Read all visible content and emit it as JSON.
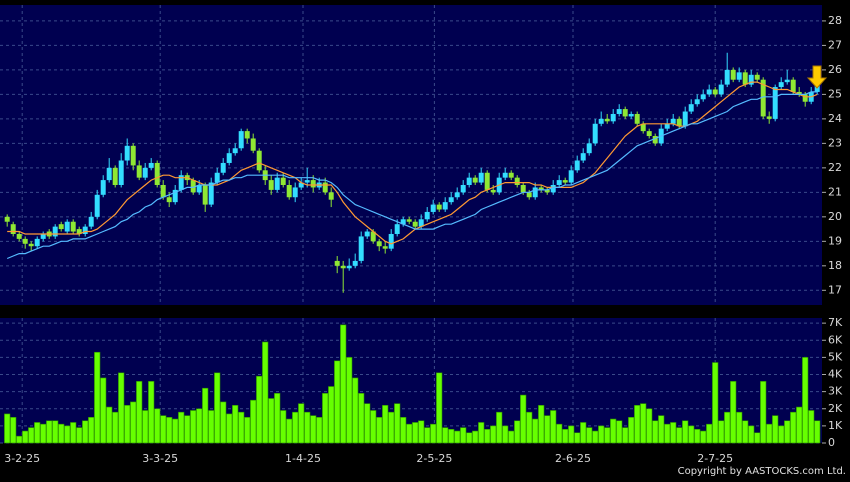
{
  "copyright": "Copyright by AASTOCKS.com Ltd.",
  "chart_data": [
    {
      "type": "candlestick",
      "up_color": "#33ddff",
      "down_color": "#8fe833",
      "open": [
        20.0,
        19.7,
        19.3,
        19.1,
        18.9,
        18.8,
        19.1,
        19.4,
        19.2,
        19.7,
        19.4,
        19.8,
        19.5,
        19.3,
        19.6,
        20.0,
        20.9,
        21.5,
        22.0,
        21.3,
        22.3,
        22.9,
        22.1,
        21.6,
        22.0,
        22.2,
        21.3,
        20.8,
        20.6,
        21.1,
        21.7,
        21.5,
        21.0,
        21.3,
        20.5,
        21.4,
        21.8,
        22.2,
        22.6,
        22.8,
        23.5,
        23.2,
        22.7,
        21.9,
        21.5,
        21.1,
        21.6,
        21.3,
        20.8,
        21.2,
        21.4,
        21.5,
        21.2,
        21.4,
        21.0,
        18.2,
        18.0,
        17.9,
        18.0,
        18.2,
        19.2,
        19.4,
        19.0,
        18.8,
        18.7,
        19.3,
        19.7,
        19.9,
        19.8,
        19.6,
        19.9,
        20.2,
        20.5,
        20.3,
        20.6,
        20.8,
        21.0,
        21.3,
        21.6,
        21.4,
        21.8,
        21.1,
        21.0,
        21.6,
        21.8,
        21.6,
        21.3,
        21.0,
        20.8,
        21.2,
        21.1,
        21.0,
        21.3,
        21.5,
        21.4,
        21.9,
        22.3,
        22.6,
        23.0,
        23.8,
        24.0,
        23.9,
        24.2,
        24.4,
        24.1,
        24.2,
        23.8,
        23.5,
        23.3,
        23.0,
        23.6,
        23.8,
        24.0,
        23.7,
        24.3,
        24.6,
        24.8,
        25.0,
        25.2,
        25.0,
        25.4,
        26.0,
        25.6,
        25.9,
        25.4,
        25.8,
        25.6,
        24.1,
        24.0,
        25.3,
        25.5,
        25.6,
        25.1,
        25.0,
        24.7,
        25.1
      ],
      "high": [
        20.1,
        19.8,
        19.4,
        19.2,
        19.0,
        19.2,
        19.4,
        19.5,
        19.7,
        19.8,
        19.9,
        19.9,
        19.6,
        19.7,
        20.2,
        21.1,
        21.7,
        22.4,
        22.1,
        22.6,
        23.2,
        23.0,
        22.3,
        22.2,
        22.4,
        22.3,
        21.5,
        21.0,
        21.3,
        21.9,
        21.8,
        21.6,
        21.5,
        21.4,
        21.6,
        22.0,
        22.4,
        22.8,
        23.0,
        23.6,
        23.6,
        23.4,
        22.8,
        22.1,
        21.7,
        21.8,
        21.8,
        21.5,
        21.4,
        21.6,
        22.0,
        21.7,
        21.6,
        21.6,
        21.2,
        18.4,
        18.2,
        18.3,
        18.5,
        19.4,
        19.5,
        19.5,
        19.1,
        19.0,
        19.5,
        19.9,
        20.0,
        20.0,
        19.9,
        20.1,
        20.4,
        20.7,
        20.6,
        20.8,
        21.0,
        21.2,
        21.5,
        21.8,
        21.7,
        22.0,
        21.9,
        21.3,
        21.8,
        22.0,
        21.9,
        21.7,
        21.4,
        21.1,
        21.4,
        21.3,
        21.2,
        21.5,
        21.7,
        21.6,
        22.1,
        22.5,
        22.8,
        23.2,
        24.0,
        24.3,
        24.2,
        24.4,
        24.6,
        24.5,
        24.3,
        24.3,
        23.9,
        23.6,
        23.4,
        23.8,
        24.0,
        24.2,
        24.1,
        24.5,
        24.8,
        25.0,
        25.2,
        25.4,
        25.3,
        25.6,
        26.7,
        26.1,
        26.1,
        26.0,
        26.0,
        25.9,
        25.7,
        24.3,
        25.4,
        25.7,
        26.0,
        25.7,
        25.3,
        25.1,
        25.3,
        25.6
      ],
      "low": [
        19.6,
        19.2,
        19.0,
        18.7,
        18.6,
        18.7,
        19.0,
        19.1,
        19.1,
        19.4,
        19.3,
        19.3,
        19.2,
        19.2,
        19.5,
        19.9,
        20.8,
        21.4,
        21.2,
        21.2,
        22.1,
        21.9,
        21.5,
        21.5,
        21.9,
        21.2,
        20.7,
        20.4,
        20.5,
        21.0,
        21.3,
        20.9,
        20.9,
        20.2,
        20.4,
        21.3,
        21.7,
        22.1,
        22.5,
        22.7,
        23.0,
        22.6,
        21.8,
        21.3,
        20.9,
        21.0,
        21.2,
        20.7,
        20.6,
        21.1,
        21.2,
        21.0,
        21.1,
        20.9,
        20.4,
        17.7,
        16.9,
        17.8,
        17.9,
        18.1,
        19.1,
        18.9,
        18.6,
        18.5,
        18.6,
        19.2,
        19.6,
        19.7,
        19.5,
        19.5,
        19.8,
        20.1,
        20.2,
        20.2,
        20.5,
        20.7,
        20.9,
        21.2,
        21.3,
        21.3,
        21.0,
        20.9,
        20.9,
        21.5,
        21.5,
        21.2,
        20.9,
        20.7,
        20.7,
        21.0,
        20.9,
        20.9,
        21.2,
        21.3,
        21.3,
        21.8,
        22.2,
        22.5,
        22.9,
        23.7,
        23.8,
        23.8,
        24.1,
        24.0,
        24.0,
        23.7,
        23.4,
        23.2,
        22.9,
        22.9,
        23.5,
        23.7,
        23.6,
        23.6,
        24.2,
        24.5,
        24.7,
        24.9,
        24.9,
        24.9,
        25.3,
        25.5,
        25.5,
        25.3,
        25.3,
        25.5,
        24.0,
        23.8,
        23.9,
        25.2,
        25.4,
        25.0,
        24.9,
        24.5,
        24.6,
        25.0
      ],
      "close": [
        19.8,
        19.3,
        19.1,
        18.9,
        18.8,
        19.1,
        19.3,
        19.2,
        19.6,
        19.5,
        19.8,
        19.4,
        19.3,
        19.6,
        20.0,
        20.9,
        21.5,
        22.0,
        21.3,
        22.3,
        22.9,
        22.1,
        21.6,
        22.0,
        22.2,
        21.3,
        20.8,
        20.6,
        21.1,
        21.7,
        21.5,
        21.0,
        21.3,
        20.5,
        21.4,
        21.8,
        22.2,
        22.6,
        22.8,
        23.5,
        23.2,
        22.7,
        21.9,
        21.5,
        21.1,
        21.6,
        21.3,
        20.8,
        21.2,
        21.4,
        21.5,
        21.2,
        21.4,
        21.0,
        20.7,
        18.0,
        17.9,
        18.0,
        18.2,
        19.2,
        19.4,
        19.0,
        18.8,
        18.7,
        19.3,
        19.7,
        19.9,
        19.8,
        19.6,
        19.9,
        20.2,
        20.5,
        20.3,
        20.6,
        20.8,
        21.0,
        21.3,
        21.6,
        21.4,
        21.8,
        21.1,
        21.0,
        21.6,
        21.8,
        21.6,
        21.3,
        21.0,
        20.8,
        21.2,
        21.1,
        21.0,
        21.3,
        21.5,
        21.4,
        21.9,
        22.3,
        22.6,
        23.0,
        23.8,
        24.0,
        23.9,
        24.2,
        24.4,
        24.1,
        24.2,
        23.8,
        23.5,
        23.3,
        23.0,
        23.6,
        23.8,
        24.0,
        23.7,
        24.3,
        24.6,
        24.8,
        25.0,
        25.2,
        25.0,
        25.4,
        26.0,
        25.6,
        25.9,
        25.4,
        25.8,
        25.6,
        24.1,
        24.0,
        25.3,
        25.5,
        25.6,
        25.1,
        25.0,
        24.7,
        25.1,
        25.4
      ],
      "series": [
        {
          "color": "#ff9933",
          "values": [
            19.4,
            19.4,
            19.4,
            19.3,
            19.3,
            19.3,
            19.3,
            19.3,
            19.3,
            19.3,
            19.3,
            19.3,
            19.3,
            19.4,
            19.4,
            19.5,
            19.7,
            19.9,
            20.1,
            20.4,
            20.7,
            20.9,
            21.1,
            21.3,
            21.5,
            21.6,
            21.7,
            21.7,
            21.6,
            21.6,
            21.6,
            21.5,
            21.4,
            21.3,
            21.3,
            21.3,
            21.4,
            21.5,
            21.7,
            21.9,
            22.0,
            22.1,
            22.2,
            22.1,
            22.0,
            21.9,
            21.8,
            21.7,
            21.6,
            21.4,
            21.3,
            21.3,
            21.3,
            21.3,
            21.3,
            21.0,
            20.6,
            20.3,
            20.0,
            19.8,
            19.6,
            19.4,
            19.2,
            19.0,
            18.9,
            19.0,
            19.1,
            19.3,
            19.5,
            19.6,
            19.7,
            19.8,
            19.9,
            20.0,
            20.1,
            20.3,
            20.5,
            20.7,
            20.8,
            21.0,
            21.1,
            21.2,
            21.3,
            21.4,
            21.4,
            21.4,
            21.4,
            21.4,
            21.3,
            21.3,
            21.2,
            21.2,
            21.2,
            21.2,
            21.2,
            21.3,
            21.4,
            21.6,
            21.8,
            22.1,
            22.4,
            22.7,
            23.0,
            23.3,
            23.5,
            23.7,
            23.8,
            23.8,
            23.8,
            23.8,
            23.8,
            23.8,
            23.7,
            23.7,
            23.8,
            23.9,
            24.1,
            24.3,
            24.5,
            24.7,
            24.9,
            25.1,
            25.3,
            25.4,
            25.5,
            25.5,
            25.4,
            25.3,
            25.2,
            25.2,
            25.2,
            25.1,
            25.0,
            24.9,
            24.9,
            25.0
          ]
        },
        {
          "color": "#55bbff",
          "values": [
            18.3,
            18.4,
            18.5,
            18.5,
            18.6,
            18.7,
            18.8,
            18.8,
            18.9,
            19.0,
            19.0,
            19.1,
            19.1,
            19.1,
            19.2,
            19.3,
            19.4,
            19.5,
            19.6,
            19.8,
            19.9,
            20.1,
            20.2,
            20.4,
            20.5,
            20.7,
            20.8,
            20.9,
            21.0,
            21.1,
            21.2,
            21.2,
            21.3,
            21.3,
            21.3,
            21.4,
            21.5,
            21.5,
            21.6,
            21.6,
            21.7,
            21.7,
            21.7,
            21.7,
            21.7,
            21.7,
            21.7,
            21.6,
            21.6,
            21.6,
            21.6,
            21.6,
            21.5,
            21.5,
            21.4,
            21.2,
            20.9,
            20.7,
            20.5,
            20.4,
            20.3,
            20.2,
            20.1,
            20.0,
            19.9,
            19.8,
            19.7,
            19.6,
            19.5,
            19.5,
            19.5,
            19.5,
            19.6,
            19.7,
            19.7,
            19.8,
            19.9,
            20.0,
            20.1,
            20.3,
            20.4,
            20.5,
            20.6,
            20.7,
            20.8,
            20.9,
            21.0,
            21.0,
            21.1,
            21.1,
            21.1,
            21.2,
            21.2,
            21.3,
            21.3,
            21.4,
            21.5,
            21.6,
            21.7,
            21.8,
            21.9,
            22.1,
            22.3,
            22.5,
            22.7,
            22.9,
            23.0,
            23.1,
            23.2,
            23.3,
            23.4,
            23.5,
            23.6,
            23.7,
            23.8,
            23.8,
            23.9,
            24.0,
            24.1,
            24.2,
            24.3,
            24.5,
            24.6,
            24.7,
            24.8,
            24.8,
            24.9,
            24.9,
            24.9,
            25.0,
            25.0,
            25.0,
            25.0,
            25.0,
            25.1,
            25.1
          ]
        }
      ],
      "xlim": [
        -1.2,
        135.8
      ],
      "xticks": [
        {
          "value": 2.5,
          "label": "3-2-25"
        },
        {
          "value": 25.5,
          "label": "3-3-25"
        },
        {
          "value": 49.3,
          "label": "1-4-25"
        },
        {
          "value": 71.2,
          "label": "2-5-25"
        },
        {
          "value": 94.3,
          "label": "2-6-25"
        },
        {
          "value": 118,
          "label": "2-7-25"
        }
      ],
      "ylim": [
        16.4,
        28.65
      ],
      "yticks": [
        17,
        18,
        19,
        20,
        21,
        22,
        23,
        24,
        25,
        26,
        27,
        28
      ],
      "grid": true
    },
    {
      "type": "bar",
      "color": "#66ff00",
      "values": [
        1700,
        1500,
        400,
        700,
        900,
        1200,
        1100,
        1300,
        1300,
        1100,
        1000,
        1200,
        900,
        1300,
        1500,
        5300,
        3800,
        2100,
        1800,
        4100,
        2200,
        2400,
        3600,
        1900,
        3600,
        2000,
        1600,
        1500,
        1400,
        1800,
        1600,
        1900,
        2000,
        3200,
        1900,
        4100,
        2400,
        1700,
        2200,
        1800,
        1500,
        2500,
        3900,
        5900,
        2600,
        2900,
        1900,
        1400,
        1800,
        2300,
        1800,
        1600,
        1500,
        2900,
        3300,
        4800,
        6900,
        5000,
        3800,
        2900,
        2300,
        1900,
        1500,
        2200,
        1800,
        2300,
        1500,
        1100,
        1200,
        1300,
        900,
        1100,
        4100,
        900,
        800,
        700,
        900,
        600,
        700,
        1200,
        800,
        1000,
        1800,
        1000,
        700,
        1300,
        2800,
        1800,
        1400,
        2200,
        1600,
        1900,
        1100,
        800,
        1000,
        600,
        1200,
        900,
        700,
        1000,
        900,
        1400,
        1300,
        900,
        1500,
        2200,
        2300,
        2000,
        1300,
        1600,
        1100,
        1200,
        900,
        1300,
        1000,
        800,
        700,
        1100,
        4700,
        1300,
        1800,
        3600,
        1800,
        1300,
        1000,
        600,
        3600,
        1100,
        1600,
        1000,
        1300,
        1800,
        2100,
        5000,
        1900,
        1300
      ],
      "ylim": [
        0,
        7300
      ],
      "yticks": [
        0,
        {
          "value": 1000,
          "label": "1K"
        },
        {
          "value": 2000,
          "label": "2K"
        },
        {
          "value": 3000,
          "label": "3K"
        },
        {
          "value": 4000,
          "label": "4K"
        },
        {
          "value": 5000,
          "label": "5K"
        },
        {
          "value": 6000,
          "label": "6K"
        },
        {
          "value": 7000,
          "label": "7K"
        }
      ],
      "grid": true
    }
  ]
}
